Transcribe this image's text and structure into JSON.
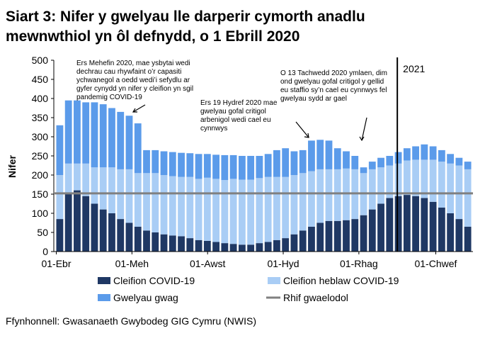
{
  "chart_data": {
    "type": "stacked_bar",
    "title": [
      "Siart 3: Nifer y gwelyau lle darperir cymorth anadlu",
      "mewnwthiol yn ôl defnydd, o 1 Ebrill 2020"
    ],
    "y_label": "Nifer",
    "source": "Ffynhonnell: Gwasanaeth Gwybodeg GIG Cymru (NWIS)",
    "x": [
      0,
      7,
      14,
      21,
      28,
      35,
      42,
      49,
      56,
      63,
      70,
      77,
      84,
      91,
      98,
      105,
      112,
      119,
      126,
      133,
      140,
      147,
      154,
      161,
      168,
      175,
      182,
      189,
      196,
      203,
      210,
      217,
      224,
      231,
      238,
      245,
      252,
      259,
      266,
      273,
      280,
      287,
      294,
      301,
      308,
      315,
      322,
      329
    ],
    "xlim": [
      -2,
      336
    ],
    "xticks": [
      {
        "value": 0,
        "label": "01-Ebr"
      },
      {
        "value": 61,
        "label": "01-Meh"
      },
      {
        "value": 122,
        "label": "01-Awst"
      },
      {
        "value": 183,
        "label": "01-Hyd"
      },
      {
        "value": 244,
        "label": "01-Rhag"
      },
      {
        "value": 306,
        "label": "01-Chwef"
      }
    ],
    "ylim": [
      0,
      500
    ],
    "yticks": [
      0,
      50,
      100,
      150,
      200,
      250,
      300,
      350,
      400,
      450,
      500
    ],
    "grid": false,
    "series": [
      {
        "name": "Cleifion COVID-19",
        "color": "#1f3864",
        "values": [
          85,
          150,
          160,
          145,
          125,
          110,
          100,
          85,
          75,
          65,
          55,
          50,
          45,
          42,
          40,
          35,
          30,
          28,
          25,
          22,
          20,
          18,
          18,
          22,
          25,
          30,
          35,
          45,
          55,
          65,
          75,
          80,
          80,
          82,
          85,
          95,
          110,
          125,
          140,
          145,
          148,
          145,
          140,
          130,
          115,
          100,
          85,
          65
        ]
      },
      {
        "name": "Cleifion heblaw COVID-19",
        "color": "#a9cdf5",
        "values": [
          115,
          80,
          70,
          85,
          95,
          110,
          120,
          130,
          140,
          140,
          150,
          155,
          155,
          155,
          155,
          160,
          160,
          165,
          165,
          165,
          170,
          170,
          170,
          170,
          170,
          165,
          160,
          155,
          150,
          145,
          140,
          135,
          135,
          135,
          130,
          110,
          105,
          95,
          85,
          85,
          90,
          95,
          100,
          110,
          120,
          130,
          140,
          150
        ]
      },
      {
        "name": "Gwelyau gwag",
        "color": "#5b9bea",
        "values": [
          130,
          165,
          165,
          160,
          170,
          165,
          155,
          150,
          140,
          130,
          60,
          60,
          62,
          63,
          63,
          62,
          65,
          62,
          63,
          65,
          62,
          62,
          62,
          58,
          60,
          70,
          75,
          62,
          60,
          80,
          77,
          75,
          55,
          45,
          35,
          15,
          20,
          25,
          25,
          30,
          32,
          35,
          40,
          35,
          30,
          25,
          20,
          20
        ]
      }
    ],
    "baseline": {
      "name": "Rhif gwaelodol",
      "value": 152,
      "color": "#808080"
    },
    "divider": {
      "value": 275,
      "label": "2021"
    },
    "annotations": [
      {
        "lines": [
          "Ers Mehefin 2020, mae ysbytai wedi",
          "dechrau cau rhywfaint o’r capasiti",
          "ychwanegol a oedd wedi’i sefydlu ar",
          "gyfer cynydd yn nifer y cleifion yn sgil",
          "pandemig COVID-19"
        ]
      },
      {
        "lines": [
          "Ers 19 Hydref 2020 mae",
          "gwelyau gofal critigol",
          "arbenigol wedi cael eu",
          "cynnwys"
        ]
      },
      {
        "lines": [
          "O 13 Tachwedd 2020 ymlaen, dim",
          "ond gwelyau gofal critigol y gellid",
          "eu staffio sy’n cael eu cynnwys fel",
          "gwelyau sydd ar gael"
        ]
      }
    ]
  }
}
